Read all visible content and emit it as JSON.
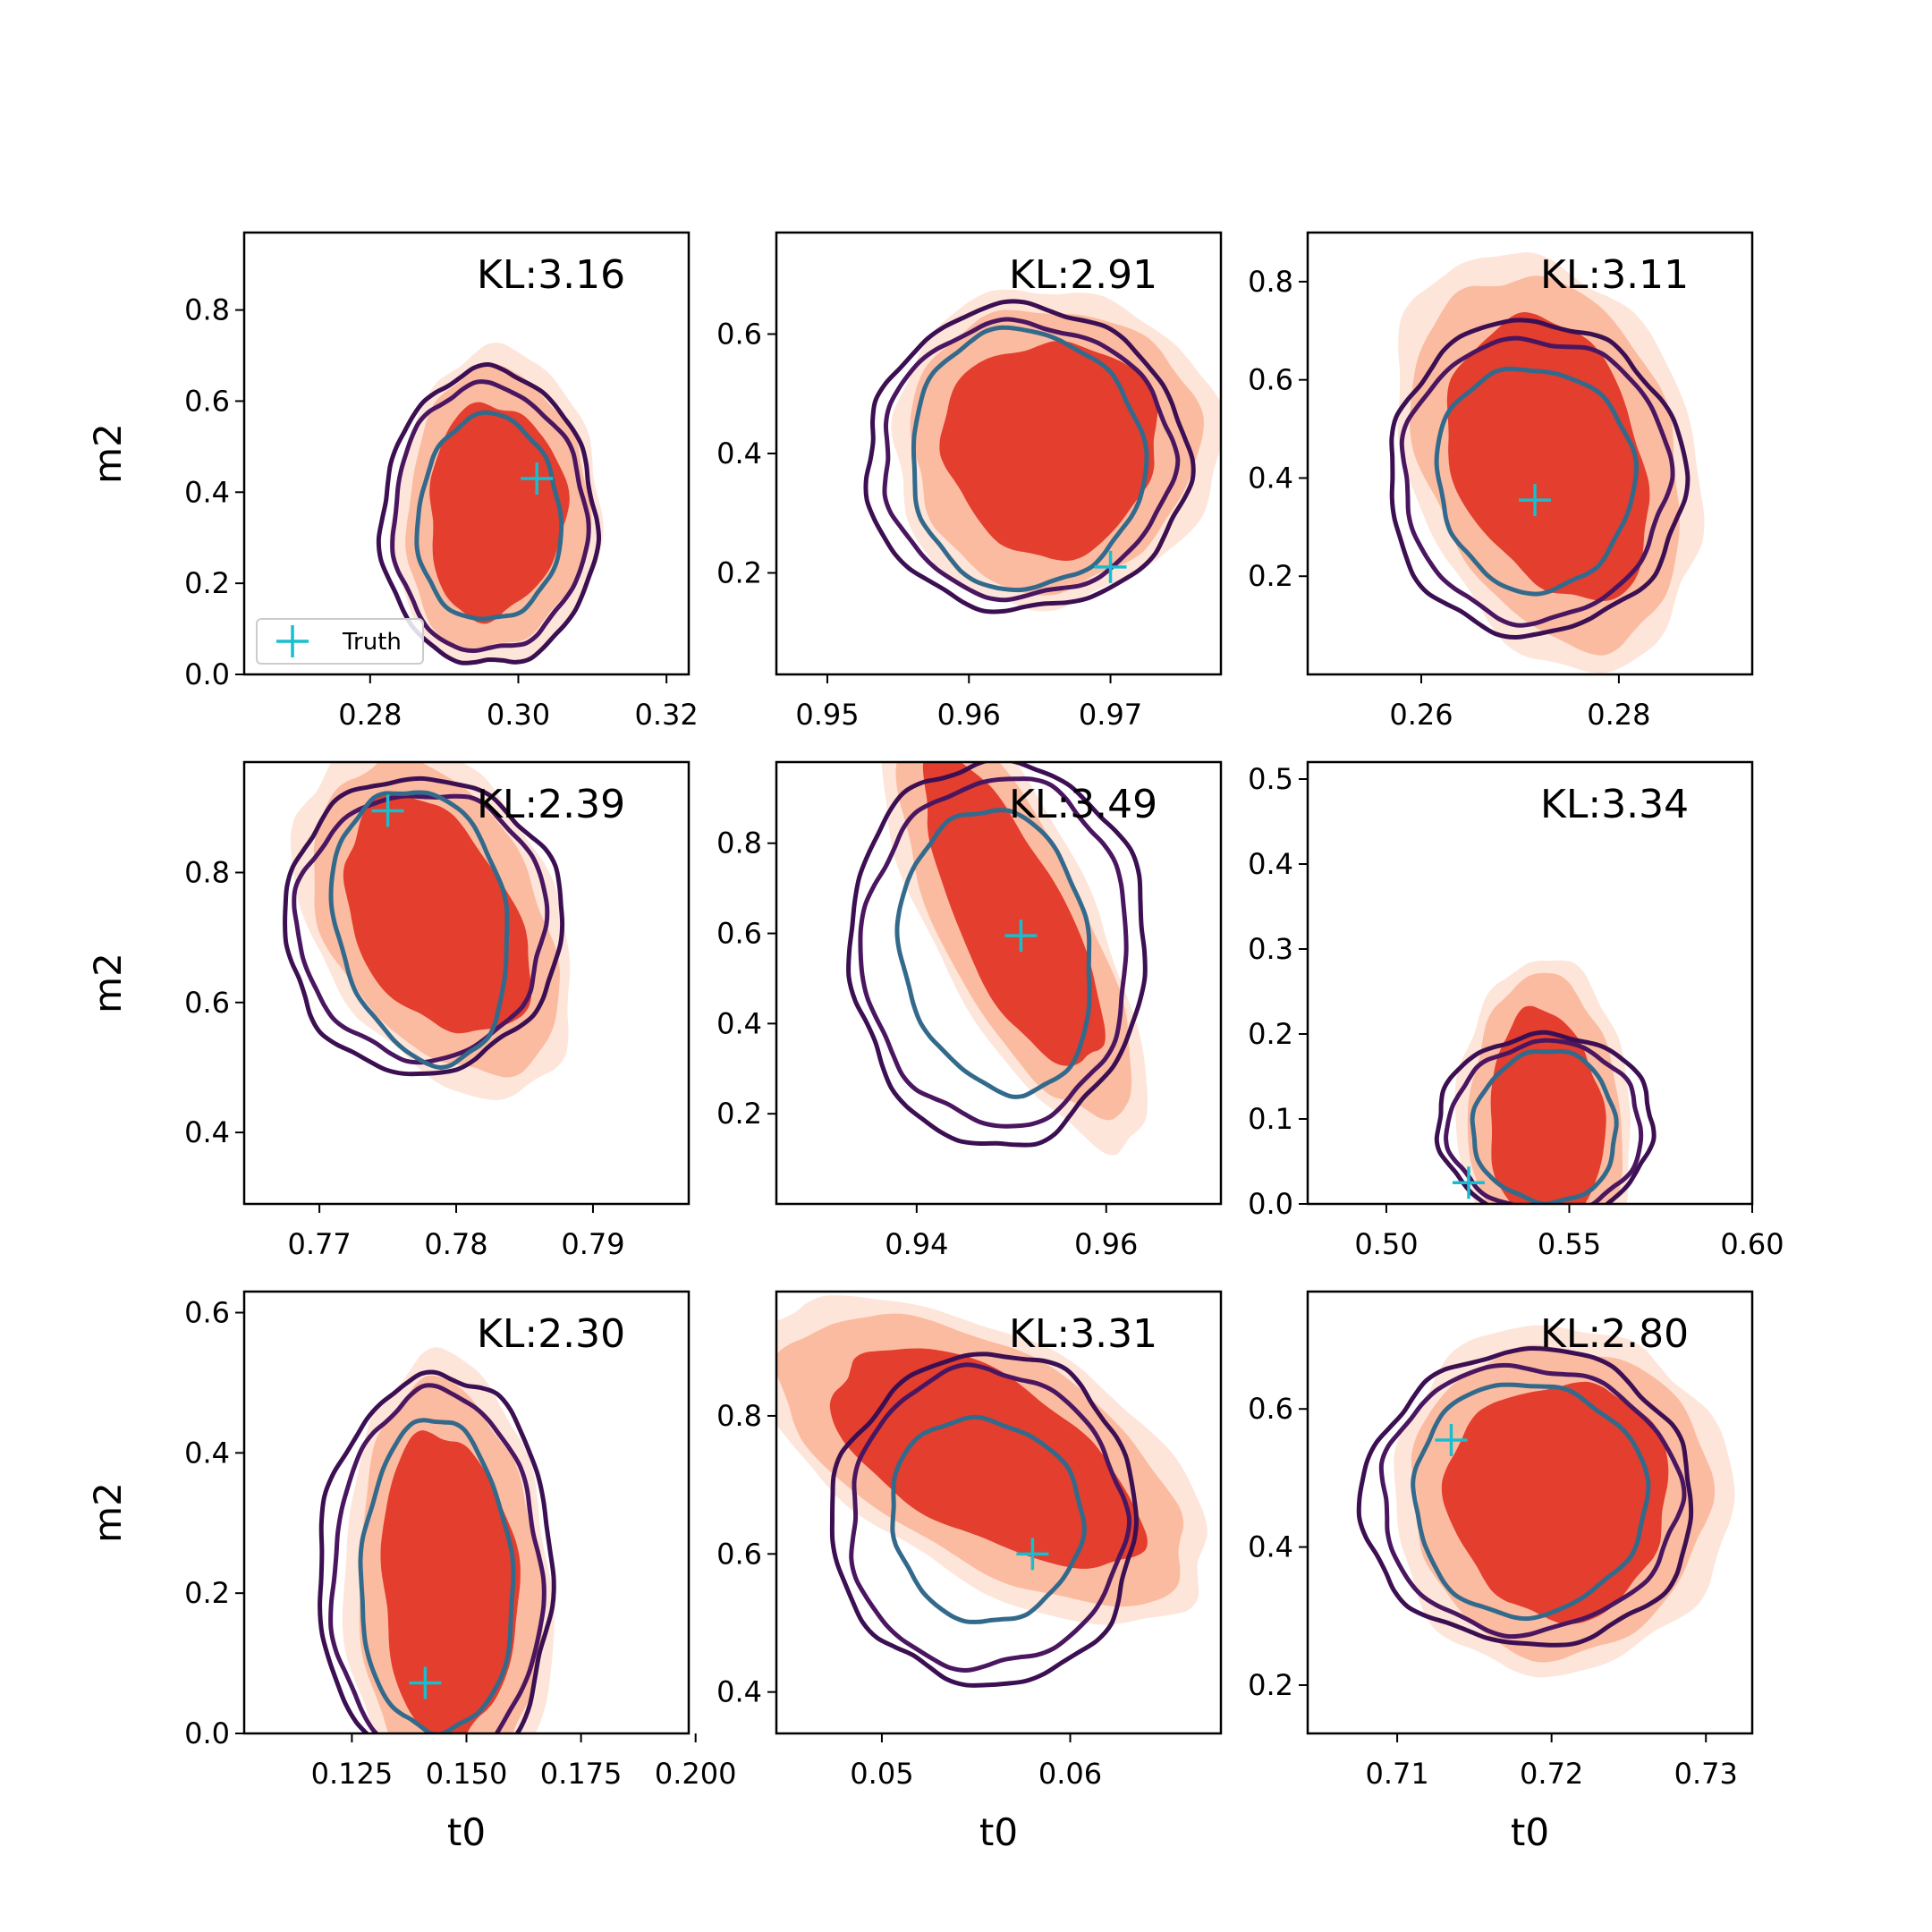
{
  "chart_data": [
    {
      "type": "scatter",
      "kl_label": "KL:3.16",
      "xlim": [
        0.263,
        0.323
      ],
      "ylim": [
        0.0,
        0.97
      ],
      "xticks": [
        0.28,
        0.3,
        0.32
      ],
      "xtick_labels": [
        "0.28",
        "0.30",
        "0.32"
      ],
      "yticks": [
        0.0,
        0.2,
        0.4,
        0.6,
        0.8
      ],
      "ytick_labels": [
        "0.0",
        "0.2",
        "0.4",
        "0.6",
        "0.8"
      ],
      "xlabel": "",
      "ylabel": "m2",
      "truth": {
        "x": 0.3025,
        "y": 0.43
      },
      "filled_center": {
        "x": 0.2965,
        "y": 0.36
      },
      "reference_center": {
        "x": 0.296,
        "y": 0.34
      },
      "legend": {
        "show": true,
        "entries": [
          "Truth"
        ],
        "location": "lower-left"
      }
    },
    {
      "type": "scatter",
      "kl_label": "KL:2.91",
      "xlim": [
        0.9464,
        0.9778
      ],
      "ylim": [
        0.03,
        0.77
      ],
      "xticks": [
        0.95,
        0.96,
        0.97
      ],
      "xtick_labels": [
        "0.95",
        "0.96",
        "0.97"
      ],
      "yticks": [
        0.2,
        0.4,
        0.6
      ],
      "ytick_labels": [
        "0.2",
        "0.4",
        "0.6"
      ],
      "xlabel": "",
      "ylabel": "",
      "truth": {
        "x": 0.97,
        "y": 0.21
      },
      "filled_center": {
        "x": 0.9655,
        "y": 0.41
      },
      "reference_center": {
        "x": 0.964,
        "y": 0.39
      }
    },
    {
      "type": "scatter",
      "kl_label": "KL:3.11",
      "xlim": [
        0.2485,
        0.2935
      ],
      "ylim": [
        0.0,
        0.9
      ],
      "xticks": [
        0.26,
        0.28
      ],
      "xtick_labels": [
        "0.26",
        "0.28"
      ],
      "yticks": [
        0.2,
        0.4,
        0.6,
        0.8
      ],
      "ytick_labels": [
        "0.2",
        "0.4",
        "0.6",
        "0.8"
      ],
      "xlabel": "",
      "ylabel": "",
      "truth": {
        "x": 0.2715,
        "y": 0.355
      },
      "filled_center": {
        "x": 0.273,
        "y": 0.44
      },
      "reference_center": {
        "x": 0.2715,
        "y": 0.4
      }
    },
    {
      "type": "scatter",
      "kl_label": "KL:2.39",
      "xlim": [
        0.7645,
        0.797
      ],
      "ylim": [
        0.29,
        0.97
      ],
      "xticks": [
        0.77,
        0.78,
        0.79
      ],
      "xtick_labels": [
        "0.77",
        "0.78",
        "0.79"
      ],
      "yticks": [
        0.4,
        0.6,
        0.8
      ],
      "ytick_labels": [
        "0.4",
        "0.6",
        "0.8"
      ],
      "xlabel": "",
      "ylabel": "m2",
      "truth": {
        "x": 0.775,
        "y": 0.895
      },
      "filled_center": {
        "x": 0.7785,
        "y": 0.73
      },
      "reference_center": {
        "x": 0.7775,
        "y": 0.72
      }
    },
    {
      "type": "scatter",
      "kl_label": "KL:3.49",
      "xlim": [
        0.9252,
        0.9721
      ],
      "ylim": [
        0.0,
        0.98
      ],
      "xticks": [
        0.94,
        0.96
      ],
      "xtick_labels": [
        "0.94",
        "0.96"
      ],
      "yticks": [
        0.2,
        0.4,
        0.6,
        0.8
      ],
      "ytick_labels": [
        "0.2",
        "0.4",
        "0.6",
        "0.8"
      ],
      "xlabel": "",
      "ylabel": "",
      "truth": {
        "x": 0.951,
        "y": 0.595
      },
      "filled_center": {
        "x": 0.95,
        "y": 0.64
      },
      "reference_center": {
        "x": 0.9485,
        "y": 0.56
      }
    },
    {
      "type": "scatter",
      "kl_label": "KL:3.34",
      "xlim": [
        0.4785,
        0.6
      ],
      "ylim": [
        0.0,
        0.52
      ],
      "xticks": [
        0.5,
        0.55,
        0.6
      ],
      "xtick_labels": [
        "0.50",
        "0.55",
        "0.60"
      ],
      "yticks": [
        0.0,
        0.1,
        0.2,
        0.3,
        0.4,
        0.5
      ],
      "ytick_labels": [
        "0.0",
        "0.1",
        "0.2",
        "0.3",
        "0.4",
        "0.5"
      ],
      "xlabel": "",
      "ylabel": "",
      "truth": {
        "x": 0.5225,
        "y": 0.025
      },
      "filled_center": {
        "x": 0.5435,
        "y": 0.1
      },
      "reference_center": {
        "x": 0.5435,
        "y": 0.09
      }
    },
    {
      "type": "scatter",
      "kl_label": "KL:2.30",
      "xlim": [
        0.1015,
        0.1985
      ],
      "ylim": [
        0.0,
        0.63
      ],
      "xticks": [
        0.125,
        0.15,
        0.175,
        0.2
      ],
      "xtick_labels": [
        "0.125",
        "0.150",
        "0.175",
        "0.200"
      ],
      "yticks": [
        0.0,
        0.2,
        0.4,
        0.6
      ],
      "ytick_labels": [
        "0.0",
        "0.2",
        "0.4",
        "0.6"
      ],
      "xlabel": "t0",
      "ylabel": "m2",
      "truth": {
        "x": 0.141,
        "y": 0.072
      },
      "filled_center": {
        "x": 0.146,
        "y": 0.21
      },
      "reference_center": {
        "x": 0.1435,
        "y": 0.22
      }
    },
    {
      "type": "scatter",
      "kl_label": "KL:3.31",
      "xlim": [
        0.0444,
        0.068
      ],
      "ylim": [
        0.34,
        0.98
      ],
      "xticks": [
        0.05,
        0.06
      ],
      "xtick_labels": [
        "0.05",
        "0.06"
      ],
      "yticks": [
        0.4,
        0.6,
        0.8
      ],
      "ytick_labels": [
        "0.4",
        "0.6",
        "0.8"
      ],
      "xlabel": "t0",
      "ylabel": "",
      "truth": {
        "x": 0.058,
        "y": 0.6
      },
      "filled_center": {
        "x": 0.0555,
        "y": 0.74
      },
      "reference_center": {
        "x": 0.0555,
        "y": 0.65
      }
    },
    {
      "type": "scatter",
      "kl_label": "KL:2.80",
      "xlim": [
        0.7042,
        0.733
      ],
      "ylim": [
        0.13,
        0.77
      ],
      "xticks": [
        0.71,
        0.72,
        0.73
      ],
      "xtick_labels": [
        "0.71",
        "0.72",
        "0.73"
      ],
      "yticks": [
        0.2,
        0.4,
        0.6
      ],
      "ytick_labels": [
        "0.2",
        "0.4",
        "0.6"
      ],
      "xlabel": "t0",
      "ylabel": "",
      "truth": {
        "x": 0.7135,
        "y": 0.555
      },
      "filled_center": {
        "x": 0.7205,
        "y": 0.47
      },
      "reference_center": {
        "x": 0.7185,
        "y": 0.47
      }
    }
  ],
  "colors": {
    "filled_outer": "#fde5da",
    "filled_mid": "#fbbba0",
    "filled_inner": "#e33e2e",
    "contour_outer": "#3b0f52",
    "contour_mid": "#4a1660",
    "contour_inner": "#336a8c",
    "truth_marker": "#17becf",
    "axes": "#000000"
  }
}
